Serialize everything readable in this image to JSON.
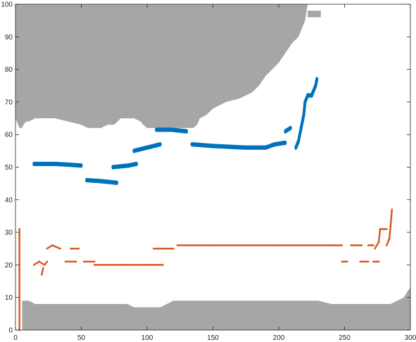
{
  "chart_data": {
    "type": "scatter",
    "title": "",
    "xlabel": "",
    "ylabel": "",
    "xlim": [
      0,
      300
    ],
    "ylim": [
      0,
      100
    ],
    "x_ticks": [
      0,
      50,
      100,
      150,
      200,
      250,
      300
    ],
    "y_ticks": [
      0,
      10,
      20,
      30,
      40,
      50,
      60,
      70,
      80,
      90,
      100
    ],
    "grid": false,
    "legend": "none",
    "colors": {
      "region": "#a6a6a6",
      "blue": "#0072bd",
      "orange": "#d95319",
      "axis": "#262626"
    },
    "regions": [
      {
        "part": "top",
        "outline": [
          [
            0,
            100
          ],
          [
            0,
            65
          ],
          [
            2,
            63
          ],
          [
            3,
            62
          ],
          [
            5,
            62
          ],
          [
            6,
            63
          ],
          [
            8,
            64
          ],
          [
            10,
            64
          ],
          [
            15,
            65
          ],
          [
            30,
            65
          ],
          [
            40,
            64
          ],
          [
            50,
            63
          ],
          [
            55,
            62
          ],
          [
            60,
            62
          ],
          [
            65,
            62
          ],
          [
            70,
            63
          ],
          [
            75,
            63
          ],
          [
            80,
            65
          ],
          [
            90,
            65
          ],
          [
            95,
            64
          ],
          [
            97,
            63
          ],
          [
            100,
            62
          ],
          [
            120,
            62
          ],
          [
            135,
            62
          ],
          [
            138,
            63
          ],
          [
            140,
            65
          ],
          [
            145,
            66
          ],
          [
            150,
            68
          ],
          [
            160,
            70
          ],
          [
            170,
            71
          ],
          [
            175,
            72
          ],
          [
            180,
            73
          ],
          [
            185,
            75
          ],
          [
            190,
            78
          ],
          [
            195,
            80
          ],
          [
            200,
            82
          ],
          [
            205,
            85
          ],
          [
            210,
            88
          ],
          [
            215,
            90
          ],
          [
            220,
            95
          ],
          [
            222,
            100
          ]
        ]
      },
      {
        "part": "bottom",
        "outline": [
          [
            5,
            0
          ],
          [
            5,
            9
          ],
          [
            10,
            9
          ],
          [
            15,
            8
          ],
          [
            20,
            8
          ],
          [
            25,
            8
          ],
          [
            30,
            8
          ],
          [
            50,
            8
          ],
          [
            60,
            8
          ],
          [
            80,
            8
          ],
          [
            85,
            8
          ],
          [
            90,
            7
          ],
          [
            100,
            7
          ],
          [
            110,
            7
          ],
          [
            115,
            8
          ],
          [
            120,
            9
          ],
          [
            130,
            9
          ],
          [
            135,
            9
          ],
          [
            230,
            9
          ],
          [
            240,
            8
          ],
          [
            260,
            8
          ],
          [
            280,
            8
          ],
          [
            285,
            8
          ],
          [
            290,
            9
          ],
          [
            295,
            10
          ],
          [
            298,
            12
          ],
          [
            300,
            13
          ],
          [
            300,
            0
          ]
        ]
      },
      {
        "part": "block",
        "outline": [
          [
            222,
            96
          ],
          [
            232,
            96
          ],
          [
            232,
            98
          ],
          [
            222,
            98
          ]
        ]
      }
    ],
    "series": [
      {
        "marker": "blue",
        "segments": [
          [
            [
              14,
              51
            ],
            [
              30,
              51
            ],
            [
              50,
              50.5
            ]
          ],
          [
            [
              54,
              46
            ],
            [
              62,
              45.8
            ],
            [
              70,
              45.5
            ],
            [
              77,
              45.2
            ]
          ],
          [
            [
              74,
              50
            ],
            [
              86,
              50.5
            ],
            [
              92,
              51
            ]
          ],
          [
            [
              90,
              55
            ],
            [
              100,
              56
            ],
            [
              110,
              57
            ]
          ],
          [
            [
              107,
              61.5
            ],
            [
              118,
              61.5
            ],
            [
              130,
              61
            ]
          ],
          [
            [
              134,
              57
            ],
            [
              150,
              56.5
            ],
            [
              165,
              56.2
            ],
            [
              175,
              56
            ],
            [
              190,
              56
            ],
            [
              197,
              57
            ],
            [
              205,
              57.5
            ]
          ],
          [
            [
              205,
              61
            ],
            [
              209,
              62
            ]
          ],
          [
            [
              213,
              56
            ],
            [
              215,
              58
            ],
            [
              217,
              62
            ],
            [
              219,
              66
            ],
            [
              220,
              70
            ],
            [
              222,
              72
            ],
            [
              225,
              72
            ],
            [
              226,
              73
            ],
            [
              228,
              75
            ],
            [
              229,
              77
            ]
          ]
        ]
      },
      {
        "marker": "orange",
        "segments": [
          [
            [
              3,
              0
            ],
            [
              3,
              31
            ]
          ],
          [
            [
              14,
              20
            ],
            [
              18,
              21
            ],
            [
              22,
              20
            ],
            [
              24,
              21
            ]
          ],
          [
            [
              20,
              17
            ],
            [
              21,
              19
            ]
          ],
          [
            [
              24,
              25
            ],
            [
              28,
              26
            ],
            [
              34,
              25
            ]
          ],
          [
            [
              38,
              21
            ],
            [
              46,
              21
            ]
          ],
          [
            [
              42,
              25
            ],
            [
              48,
              25
            ]
          ],
          [
            [
              52,
              21
            ],
            [
              60,
              21
            ]
          ],
          [
            [
              60,
              20
            ],
            [
              80,
              20
            ],
            [
              100,
              20
            ],
            [
              112,
              20
            ]
          ],
          [
            [
              105,
              25
            ],
            [
              114,
              25
            ],
            [
              120,
              25
            ]
          ],
          [
            [
              123,
              26
            ],
            [
              150,
              26
            ],
            [
              200,
              26
            ],
            [
              240,
              26
            ],
            [
              248,
              26
            ]
          ],
          [
            [
              248,
              21
            ],
            [
              252,
              21
            ]
          ],
          [
            [
              255,
              26
            ],
            [
              263,
              26
            ]
          ],
          [
            [
              262,
              21
            ],
            [
              268,
              21
            ]
          ],
          [
            [
              268,
              26
            ],
            [
              272,
              26
            ]
          ],
          [
            [
              272,
              21
            ],
            [
              276,
              21
            ]
          ],
          [
            [
              273,
              25
            ],
            [
              276,
              27
            ],
            [
              277,
              31
            ],
            [
              282,
              31
            ]
          ],
          [
            [
              282,
              26
            ],
            [
              284,
              28
            ],
            [
              285,
              32
            ],
            [
              286,
              37
            ]
          ]
        ]
      }
    ]
  }
}
